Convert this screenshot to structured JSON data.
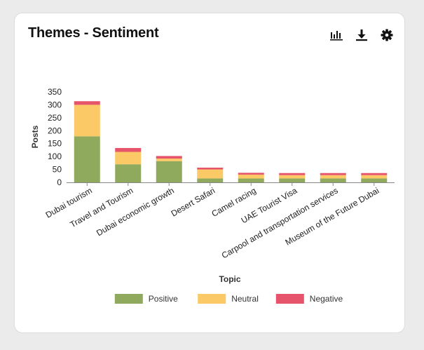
{
  "card": {
    "title": "Themes - Sentiment"
  },
  "toolbar": {
    "icons": [
      "bar-chart-icon",
      "download-icon",
      "gear-icon"
    ]
  },
  "colors": {
    "positive": "#8faa5c",
    "neutral": "#fbc965",
    "negative": "#e5546b",
    "axis": "#888888",
    "text": "#222222"
  },
  "chart_data": {
    "type": "bar",
    "stacked": true,
    "categories": [
      "Dubai tourism",
      "Travel and Tourism",
      "Dubai economic growth",
      "Desert Safari",
      "Camel racing",
      "UAE Tourist Visa",
      "Carpool and transportation services",
      "Museum of the Future Dubai"
    ],
    "series": [
      {
        "name": "Positive",
        "values": [
          178,
          70,
          82,
          15,
          15,
          15,
          15,
          15
        ]
      },
      {
        "name": "Neutral",
        "values": [
          122,
          48,
          10,
          35,
          15,
          13,
          13,
          13
        ]
      },
      {
        "name": "Negative",
        "values": [
          14,
          15,
          10,
          7,
          7,
          8,
          8,
          8
        ]
      }
    ],
    "xlabel": "Topic",
    "ylabel": "Posts",
    "ylim": [
      0,
      350
    ],
    "yticks": [
      0,
      50,
      100,
      150,
      200,
      250,
      300,
      350
    ],
    "grid": false,
    "legend_position": "bottom"
  }
}
